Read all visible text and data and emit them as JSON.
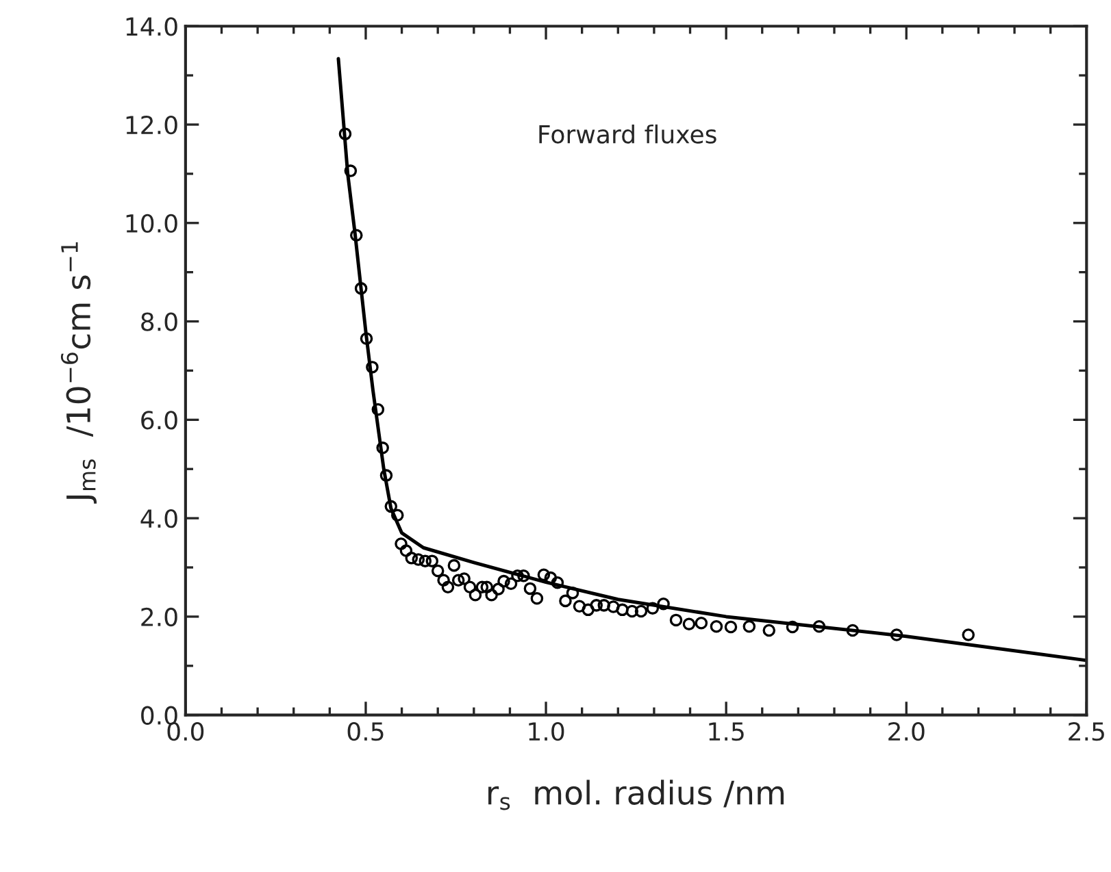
{
  "chart_data": {
    "type": "scatter",
    "xlabel": "r$_{s}$  mol. radius /nm",
    "ylabel": "J$_{ms}$  /10$^{−6}$cm s$^{−1}$",
    "annotations": [
      "Forward fluxes"
    ],
    "xlim": [
      0,
      2.5
    ],
    "ylim": [
      0,
      14
    ],
    "xticks": [
      {
        "value": 0,
        "label": "0.0"
      },
      {
        "value": 0.5,
        "label": "0.5"
      },
      {
        "value": 1.0,
        "label": "1.0"
      },
      {
        "value": 1.5,
        "label": "1.5"
      },
      {
        "value": 2.0,
        "label": "2.0"
      },
      {
        "value": 2.5,
        "label": "2.5"
      }
    ],
    "yticks": [
      {
        "value": 0,
        "label": "0.0"
      },
      {
        "value": 2,
        "label": "2.0"
      },
      {
        "value": 4,
        "label": "4.0"
      },
      {
        "value": 6,
        "label": "6.0"
      },
      {
        "value": 8,
        "label": "8.0"
      },
      {
        "value": 10,
        "label": "10.0"
      },
      {
        "value": 12,
        "label": "12.0"
      },
      {
        "value": 14,
        "label": "14.0"
      }
    ],
    "grid": false,
    "legend": false,
    "series": [
      {
        "marker": "circle",
        "color": "#000000",
        "x": [
          0.443,
          0.458,
          0.474,
          0.487,
          0.502,
          0.518,
          0.534,
          0.547,
          0.557,
          0.57,
          0.588,
          0.598,
          0.612,
          0.627,
          0.646,
          0.665,
          0.684,
          0.7,
          0.716,
          0.728,
          0.745,
          0.757,
          0.773,
          0.789,
          0.804,
          0.823,
          0.836,
          0.849,
          0.868,
          0.883,
          0.903,
          0.921,
          0.938,
          0.956,
          0.975,
          0.994,
          1.013,
          1.032,
          1.054,
          1.074,
          1.093,
          1.117,
          1.14,
          1.161,
          1.187,
          1.212,
          1.239,
          1.264,
          1.296,
          1.326,
          1.361,
          1.397,
          1.431,
          1.473,
          1.513,
          1.564,
          1.619,
          1.684,
          1.758,
          1.851,
          1.973,
          2.172
        ],
        "values": [
          11.81,
          11.06,
          9.75,
          8.67,
          7.65,
          7.07,
          6.21,
          5.43,
          4.87,
          4.24,
          4.06,
          3.48,
          3.34,
          3.19,
          3.16,
          3.13,
          3.13,
          2.93,
          2.74,
          2.6,
          3.04,
          2.74,
          2.77,
          2.6,
          2.44,
          2.6,
          2.6,
          2.44,
          2.56,
          2.72,
          2.67,
          2.83,
          2.83,
          2.57,
          2.37,
          2.85,
          2.79,
          2.69,
          2.32,
          2.48,
          2.21,
          2.14,
          2.23,
          2.23,
          2.2,
          2.14,
          2.11,
          2.11,
          2.17,
          2.26,
          1.93,
          1.85,
          1.87,
          1.8,
          1.79,
          1.8,
          1.72,
          1.79,
          1.8,
          1.72,
          1.63,
          1.63
        ]
      },
      {
        "type": "line",
        "marker": "none",
        "line_style": "solid",
        "color": "#000000",
        "x": [
          0.424,
          0.45,
          0.47,
          0.5,
          0.52,
          0.55,
          0.57,
          0.6,
          0.66,
          0.8,
          1.0,
          1.2,
          1.5,
          2.0,
          2.5
        ],
        "values": [
          13.34,
          11.0,
          9.8,
          7.8,
          6.6,
          5.0,
          4.2,
          3.7,
          3.4,
          3.1,
          2.7,
          2.35,
          2.0,
          1.6,
          1.11
        ]
      }
    ]
  }
}
